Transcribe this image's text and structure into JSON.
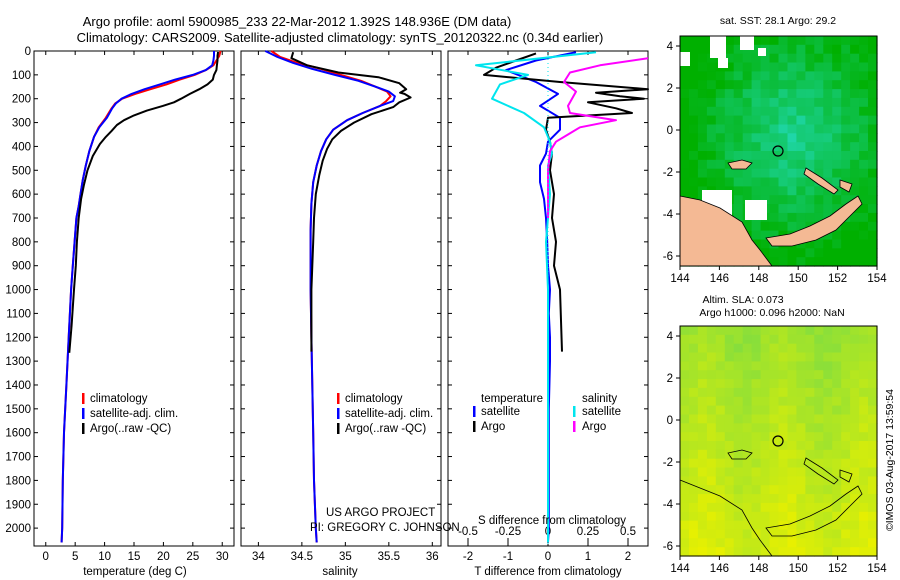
{
  "header": {
    "line1": "Argo profile: aoml 5900985_233 22-Mar-2012 1.392S 148.936E (DM data)",
    "line2": "Climatology: CARS2009. Satellite-adjusted climatology: synTS_20120322.nc (0.34d earlier)"
  },
  "credits": {
    "project": "US ARGO PROJECT",
    "pi": "PI: GREGORY C. JOHNSON",
    "imos": "©IMOS 03-Aug-2017 13:59:54"
  },
  "colors": {
    "climatology": "#ff0000",
    "satellite_adj": "#0000ff",
    "argo": "#000000",
    "sal_satellite": "#00e5ee",
    "sal_argo": "#ff00ff",
    "land": "#f4b994",
    "sst_low": "#00b000",
    "sst_high": "#20d8b0",
    "sla_low": "#80dd40",
    "sla_high": "#e8f000"
  },
  "legends": {
    "panel1": [
      "climatology",
      "satellite-adj. clim.",
      "Argo(..raw -QC)"
    ],
    "panel2": [
      "climatology",
      "satellite-adj. clim.",
      "Argo(..raw -QC)"
    ],
    "panel3": {
      "temperature_title": "temperature",
      "salinity_title": "salinity",
      "temperature_items": [
        "satellite",
        "Argo"
      ],
      "salinity_items": [
        "satellite",
        "Argo"
      ]
    }
  },
  "maps": {
    "sst": {
      "title": "sat. SST: 28.1  Argo: 29.2",
      "xticks": [
        "144",
        "146",
        "148",
        "150",
        "152",
        "154"
      ],
      "yticks": [
        "4",
        "2",
        "0",
        "-2",
        "-4",
        "-6"
      ]
    },
    "sla": {
      "title1": "Altim. SLA: 0.073",
      "title2": "Argo h1000: 0.096 h2000: NaN",
      "xticks": [
        "144",
        "146",
        "148",
        "150",
        "152",
        "154"
      ],
      "yticks": [
        "4",
        "2",
        "0",
        "-2",
        "-4",
        "-6"
      ]
    }
  },
  "chart_data": [
    {
      "type": "line",
      "name": "temperature",
      "xlabel": "temperature (deg C)",
      "ylabel": "",
      "xlim": [
        -2,
        32
      ],
      "ylim": [
        2075,
        0
      ],
      "xticks": [
        0,
        5,
        10,
        15,
        20,
        25,
        30
      ],
      "yticks": [
        0,
        100,
        200,
        300,
        400,
        500,
        600,
        700,
        800,
        900,
        1000,
        1100,
        1200,
        1300,
        1400,
        1500,
        1600,
        1700,
        1800,
        1900,
        2000
      ],
      "series": [
        {
          "name": "climatology",
          "color": "#ff0000",
          "x": [
            29.7,
            29.5,
            29.0,
            28.5,
            27.2,
            25.3,
            22.8,
            20.5,
            17.8,
            15.2,
            13.0,
            11.8,
            11.2,
            10.2,
            9.0,
            8.2,
            7.4,
            6.8,
            6.3,
            5.9,
            5.6,
            5.2,
            4.9,
            4.6,
            4.3,
            3.9,
            3.5,
            3.1,
            2.9,
            2.8,
            2.7
          ],
          "y": [
            0,
            20,
            40,
            60,
            80,
            100,
            120,
            140,
            160,
            180,
            200,
            220,
            240,
            280,
            320,
            360,
            420,
            480,
            540,
            600,
            650,
            700,
            800,
            900,
            1000,
            1200,
            1400,
            1600,
            1800,
            2000,
            2060
          ]
        },
        {
          "name": "satellite-adj. clim.",
          "color": "#0000ff",
          "x": [
            28.6,
            28.6,
            28.5,
            28.3,
            27.2,
            25.0,
            22.0,
            19.4,
            16.8,
            14.6,
            12.9,
            11.9,
            11.3,
            10.4,
            9.1,
            8.2,
            7.4,
            6.8,
            6.3,
            5.9,
            5.6,
            5.2,
            4.9,
            4.6,
            4.3,
            3.9,
            3.5,
            3.1,
            2.9,
            2.8,
            2.7
          ],
          "y": [
            0,
            20,
            40,
            60,
            80,
            100,
            120,
            140,
            160,
            180,
            200,
            220,
            240,
            280,
            320,
            360,
            420,
            480,
            540,
            600,
            650,
            700,
            800,
            900,
            1000,
            1200,
            1400,
            1600,
            1800,
            2000,
            2060
          ]
        },
        {
          "name": "Argo(..raw -QC)",
          "color": "#000000",
          "x": [
            29.3,
            29.2,
            29.2,
            29.1,
            29.0,
            28.6,
            28.4,
            27.5,
            26.1,
            24.5,
            23.0,
            21.8,
            19.9,
            17.2,
            15.0,
            13.3,
            12.1,
            11.2,
            10.2,
            9.2,
            8.0,
            7.1,
            6.5,
            6.0,
            5.6,
            5.3,
            5.1,
            4.8,
            4.4,
            4.0
          ],
          "y": [
            4,
            20,
            40,
            60,
            80,
            100,
            120,
            140,
            160,
            180,
            200,
            215,
            230,
            250,
            270,
            290,
            310,
            335,
            360,
            390,
            440,
            500,
            560,
            620,
            700,
            800,
            900,
            1000,
            1150,
            1265
          ]
        }
      ]
    },
    {
      "type": "line",
      "name": "salinity",
      "xlabel": "salinity",
      "ylabel": "",
      "xlim": [
        33.8,
        36.1
      ],
      "ylim": [
        2075,
        0
      ],
      "xticks": [
        34,
        34.5,
        35,
        35.5,
        36
      ],
      "series": [
        {
          "name": "climatology",
          "color": "#ff0000",
          "x": [
            34.15,
            34.25,
            34.45,
            34.72,
            34.95,
            35.18,
            35.35,
            35.48,
            35.52,
            35.47,
            35.4,
            35.2,
            35.02,
            34.86,
            34.78,
            34.72,
            34.67,
            34.63,
            34.61,
            34.6,
            34.6,
            34.6,
            34.61,
            34.62,
            34.63,
            34.64,
            34.65,
            34.66,
            34.67
          ],
          "y": [
            0,
            25,
            50,
            75,
            100,
            125,
            150,
            170,
            190,
            210,
            230,
            260,
            290,
            330,
            370,
            420,
            480,
            550,
            640,
            750,
            900,
            1000,
            1200,
            1400,
            1600,
            1800,
            1900,
            2000,
            2060
          ]
        },
        {
          "name": "satellite-adj. clim.",
          "color": "#0000ff",
          "x": [
            34.08,
            34.22,
            34.4,
            34.62,
            34.88,
            35.15,
            35.35,
            35.5,
            35.57,
            35.55,
            35.4,
            35.2,
            35.02,
            34.86,
            34.78,
            34.72,
            34.67,
            34.63,
            34.61,
            34.6,
            34.6,
            34.6,
            34.61,
            34.62,
            34.63,
            34.64,
            34.65,
            34.66,
            34.67
          ],
          "y": [
            0,
            25,
            50,
            75,
            100,
            125,
            150,
            170,
            190,
            210,
            230,
            260,
            290,
            330,
            370,
            420,
            480,
            550,
            640,
            750,
            900,
            1000,
            1200,
            1400,
            1600,
            1800,
            1900,
            2000,
            2060
          ]
        },
        {
          "name": "Argo(..raw -QC)",
          "color": "#000000",
          "x": [
            34.4,
            34.38,
            34.56,
            34.92,
            35.38,
            35.62,
            35.7,
            35.63,
            35.68,
            35.75,
            35.62,
            35.55,
            35.3,
            35.1,
            34.95,
            34.85,
            34.79,
            34.74,
            34.7,
            34.66,
            34.64,
            34.63,
            34.62,
            34.61,
            34.61
          ],
          "y": [
            5,
            30,
            60,
            90,
            110,
            135,
            160,
            175,
            180,
            195,
            215,
            235,
            265,
            300,
            335,
            370,
            410,
            460,
            520,
            600,
            700,
            800,
            900,
            1000,
            1260
          ]
        }
      ]
    },
    {
      "type": "line",
      "name": "difference from climatology",
      "xlabel": "T difference from climatology",
      "xlabel2": "S difference from climatology",
      "ylabel": "",
      "xlim": [
        -2.5,
        2.5
      ],
      "ylim": [
        2075,
        0
      ],
      "xticks": [
        -2,
        -1,
        0,
        1,
        2
      ],
      "sticks": [
        "-0.5",
        "-0.25",
        "0",
        "0.25",
        "0.5"
      ],
      "series": [
        {
          "name": "temperature satellite",
          "color": "#0000ff",
          "x": [
            0.7,
            -0.3,
            -1.05,
            -0.3,
            0.25,
            -0.2,
            0.3,
            0.3,
            0.0,
            -0.05,
            -0.2,
            -0.2,
            -0.1,
            -0.05,
            -0.02,
            0.0,
            0.05,
            0.02,
            0.05,
            0.05,
            0.02,
            0.02,
            0.02,
            0.02,
            0.0
          ],
          "y": [
            5,
            40,
            80,
            130,
            180,
            230,
            280,
            330,
            380,
            430,
            480,
            550,
            620,
            700,
            800,
            900,
            1000,
            1100,
            1200,
            1300,
            1500,
            1700,
            1900,
            2000,
            2060
          ]
        },
        {
          "name": "temperature Argo",
          "color": "#000000",
          "x": [
            -0.3,
            -0.8,
            -1.3,
            -1.6,
            0.3,
            2.5,
            1.2,
            1.8,
            2.4,
            1.0,
            1.7,
            2.1,
            0.0,
            -0.05,
            0.05,
            0.1,
            0.05,
            0.15,
            0.1,
            0.2,
            0.15,
            0.3,
            0.35
          ],
          "y": [
            10,
            40,
            70,
            100,
            130,
            160,
            175,
            190,
            200,
            215,
            240,
            260,
            280,
            330,
            380,
            430,
            500,
            600,
            700,
            800,
            900,
            1000,
            1260
          ]
        },
        {
          "name": "salinity satellite",
          "color": "#00e5ee",
          "x": [
            1.2,
            -1.8,
            -0.5,
            -1.2,
            -1.4,
            -0.6,
            -0.1,
            0.05,
            0.1,
            0.0,
            0.05,
            -0.05,
            0.0,
            0.0,
            0.0
          ],
          "y": [
            5,
            60,
            100,
            140,
            200,
            260,
            320,
            380,
            430,
            480,
            600,
            800,
            1000,
            1500,
            2060
          ]
        },
        {
          "name": "salinity Argo",
          "color": "#ff00ff",
          "x": [
            2.5,
            1.3,
            0.55,
            0.4,
            0.7,
            0.6,
            0.5,
            0.55,
            1.7,
            0.8,
            0.5,
            0.2,
            0.05,
            0.0,
            0.0
          ],
          "y": [
            30,
            60,
            90,
            130,
            170,
            200,
            230,
            260,
            290,
            320,
            350,
            380,
            420,
            500,
            700
          ]
        }
      ]
    }
  ]
}
